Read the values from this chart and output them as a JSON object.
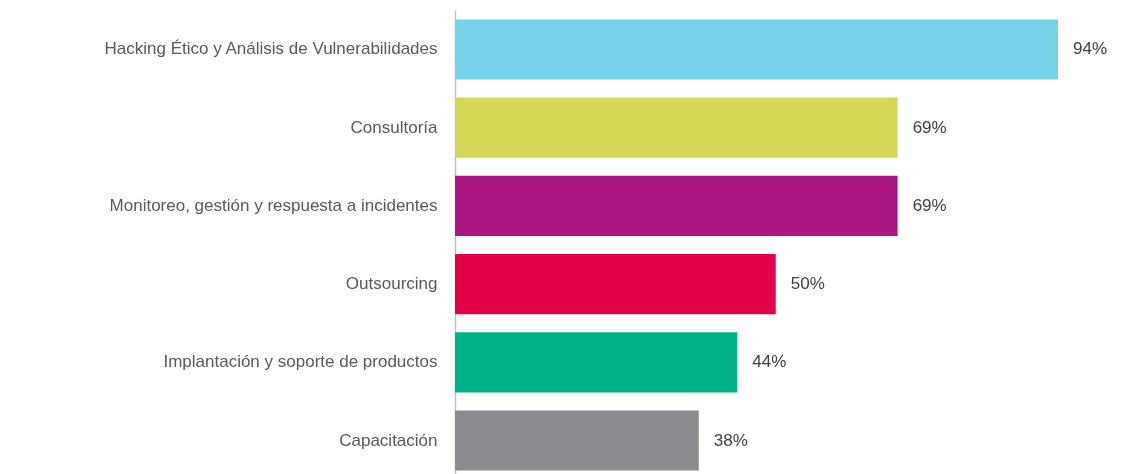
{
  "chart_data": {
    "type": "bar",
    "orientation": "horizontal",
    "categories": [
      "Hacking Ético y Análisis de Vulnerabilidades",
      "Consultoría",
      "Monitoreo, gestión y respuesta a incidentes",
      "Outsourcing",
      "Implantación y soporte de productos",
      "Capacitación"
    ],
    "values": [
      94,
      69,
      69,
      50,
      44,
      38
    ],
    "colors": [
      "#76d1ea",
      "#d4d856",
      "#ad1685",
      "#e20046",
      "#00b28a",
      "#898b8e"
    ],
    "value_labels": [
      "94%",
      "69%",
      "69%",
      "50%",
      "44%",
      "38%"
    ]
  }
}
